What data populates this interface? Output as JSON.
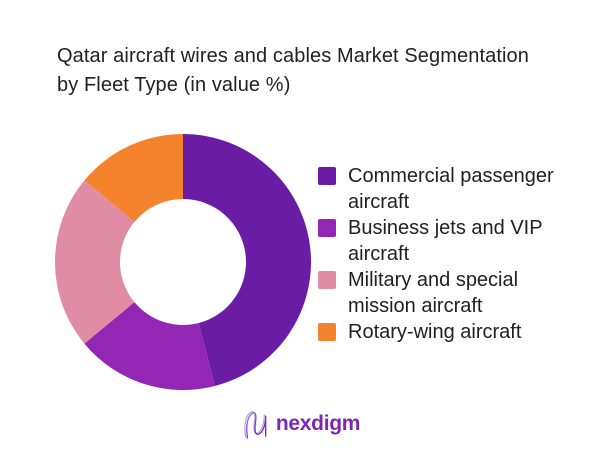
{
  "title": {
    "lines": [
      "Qatar aircraft wires and cables Market Segmentation",
      "by Fleet Type (in value %)"
    ]
  },
  "chart_data": {
    "type": "pie",
    "subtype": "donut",
    "title": "Qatar aircraft wires and cables Market Segmentation by Fleet Type (in value %)",
    "unit": "value %",
    "categories": [
      "Commercial passenger aircraft",
      "Business jets and VIP aircraft",
      "Military and special mission aircraft",
      "Rotary-wing aircraft"
    ],
    "values": [
      46,
      18,
      22,
      14
    ],
    "colors": [
      "#6B1CA4",
      "#9326B5",
      "#E18CA5",
      "#F5822D"
    ],
    "start_angle_deg": 0,
    "direction": "clockwise",
    "inner_radius_ratio": 0.49,
    "legend_position": "right",
    "data_labels_shown": false
  },
  "logo": {
    "wordmark": "nexdigm",
    "icon": "nexdigm-n-wave-icon",
    "wordmark_color": "#7D26B4"
  },
  "colors": {
    "background": "#ffffff",
    "text": "#212121"
  }
}
